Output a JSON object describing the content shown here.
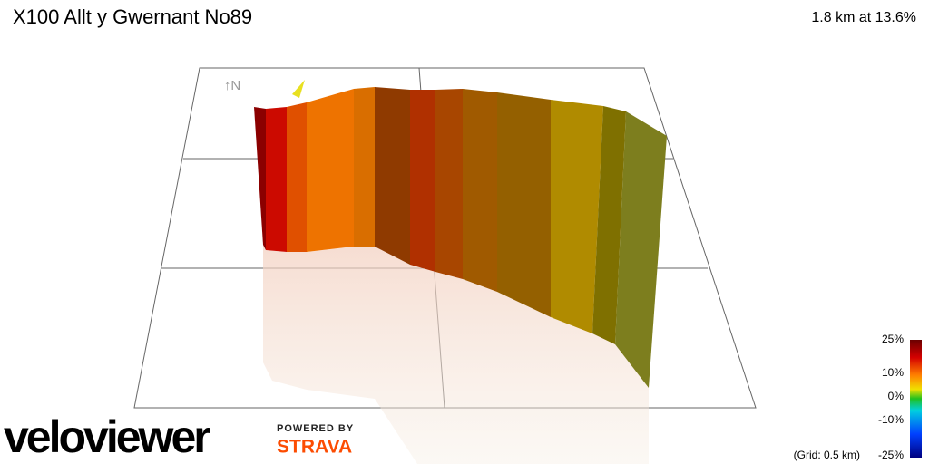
{
  "header": {
    "title": "X100 Allt y Gwernant No89",
    "summary": "1.8 km at 13.6%"
  },
  "compass": "↑N",
  "legend": {
    "labels": [
      "25%",
      "10%",
      "0%",
      "-10%",
      "-25%"
    ],
    "grid_note": "(Grid: 0.5 km)"
  },
  "branding": {
    "logo": "veloviewer",
    "powered_by": "POWERED BY",
    "partner": "STRAVA"
  }
}
